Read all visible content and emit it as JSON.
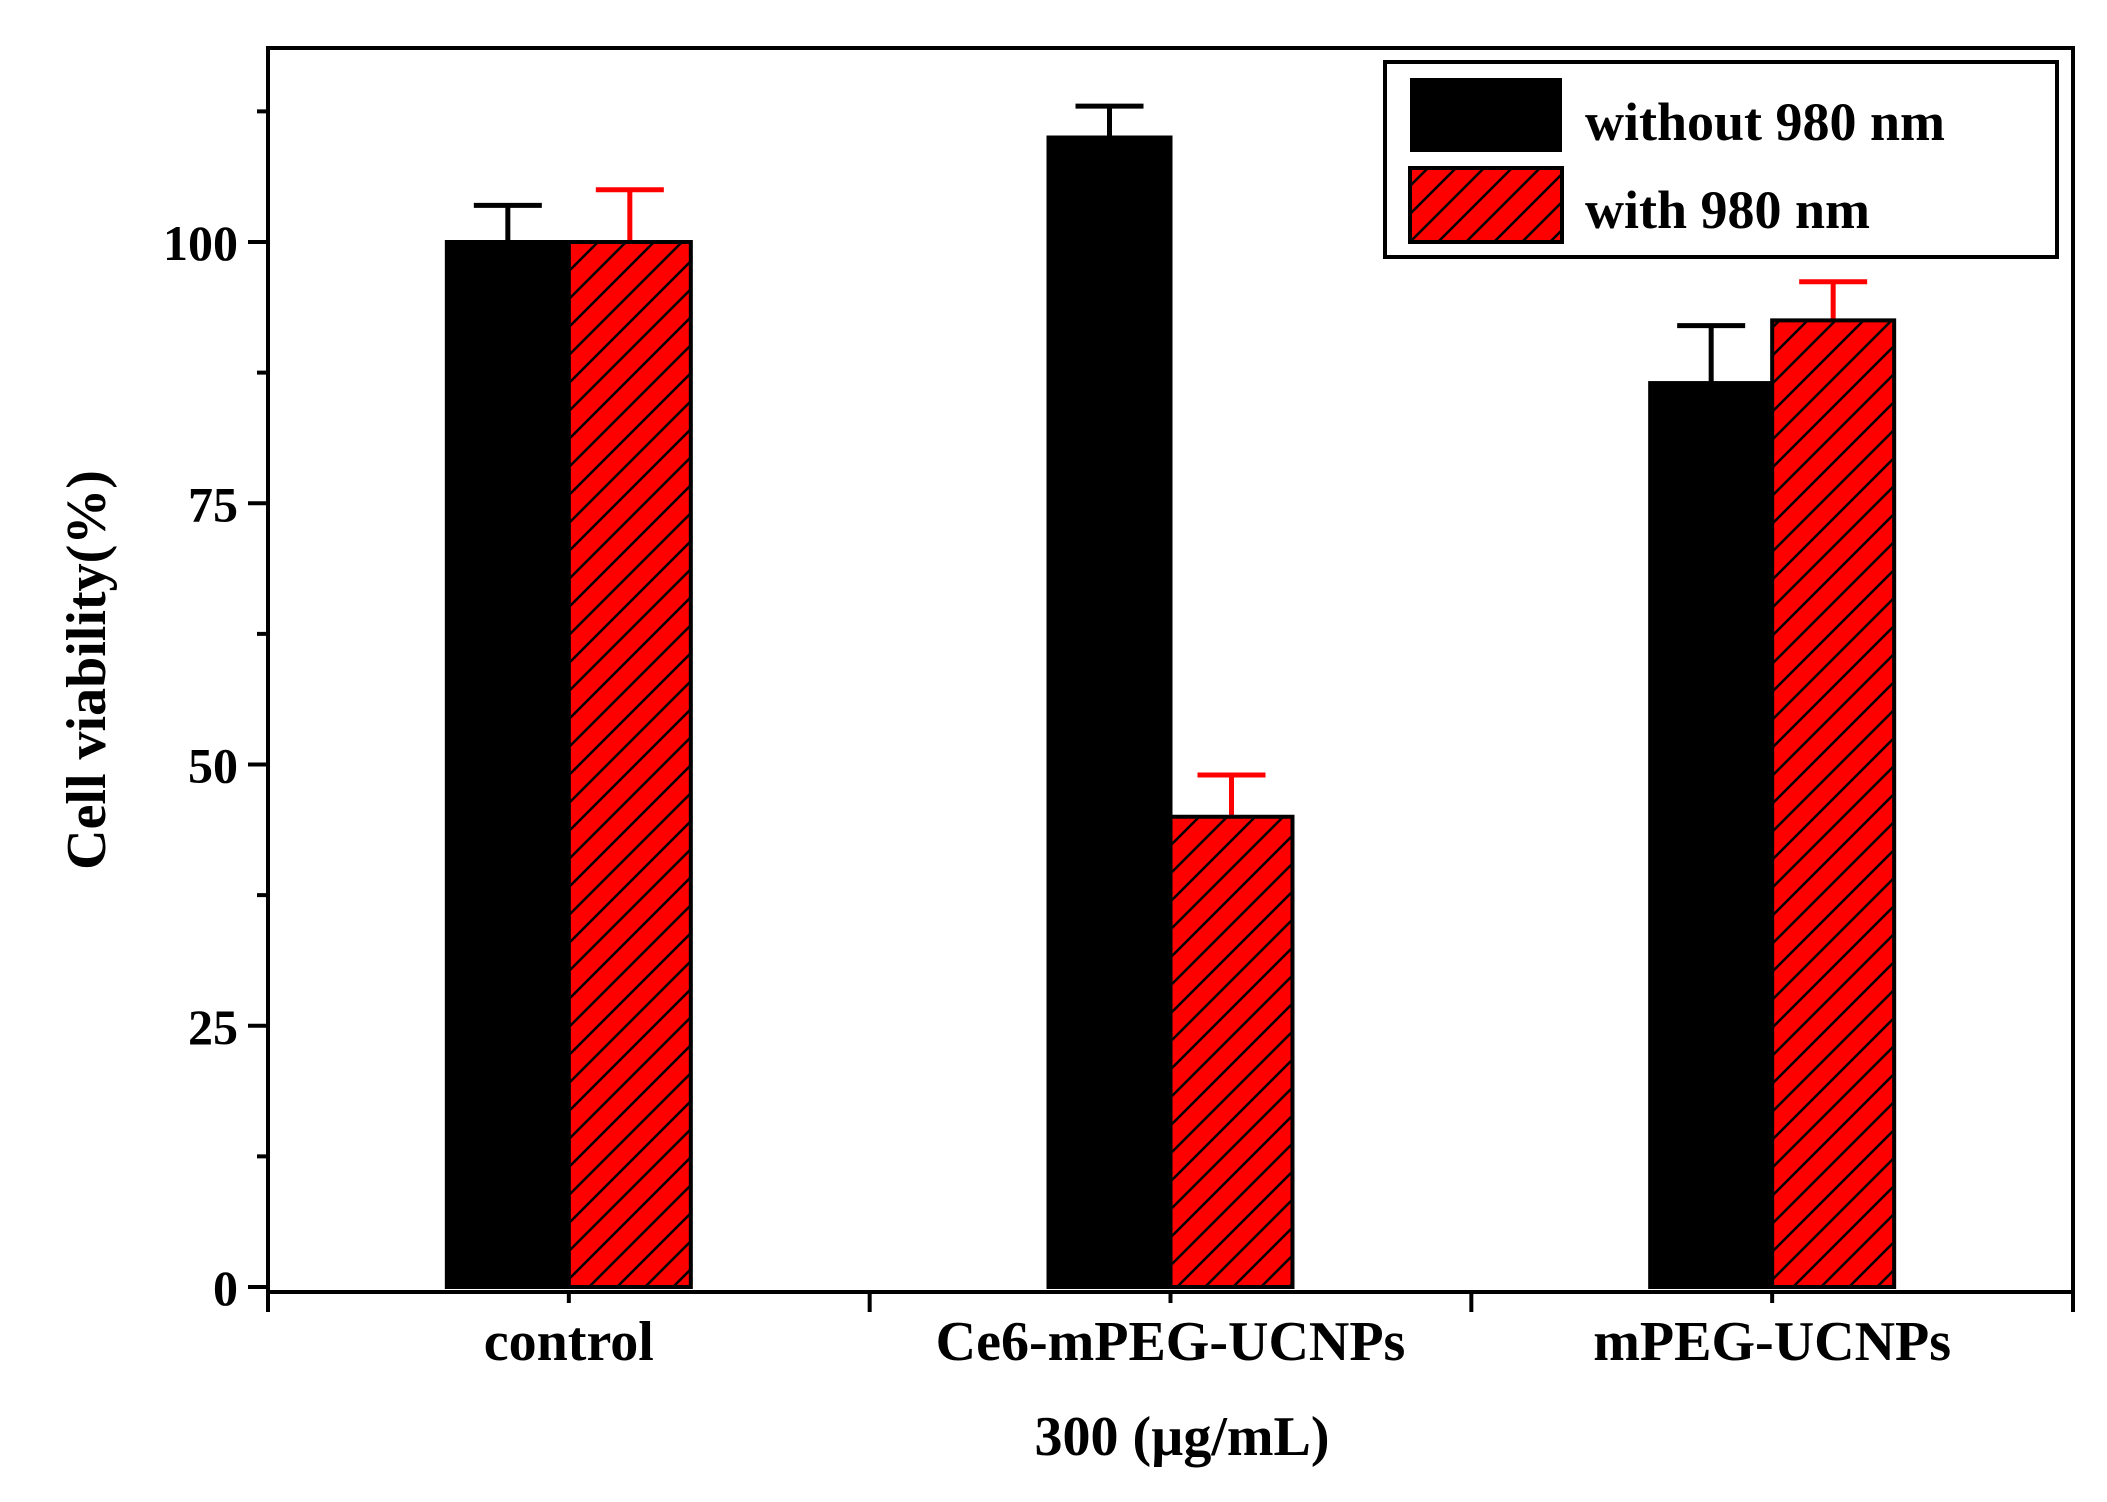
{
  "chart_data": {
    "type": "bar",
    "title": "",
    "categories": [
      "control",
      "Ce6-mPEG-UCNPs",
      "mPEG-UCNPs"
    ],
    "xlabel": "300 (µg/mL)",
    "ylabel": "Cell viability(%)",
    "ylim": [
      0,
      120
    ],
    "yticks": [
      0,
      25,
      50,
      75,
      100
    ],
    "legend_position": "top-right",
    "series": [
      {
        "name": "without 980 nm",
        "color": "#000000",
        "pattern": "solid",
        "values": [
          100,
          110,
          86.5
        ],
        "errors": [
          3.5,
          3,
          5.5
        ]
      },
      {
        "name": "with 980 nm",
        "color": "#ff0000",
        "pattern": "diagonal-hatch",
        "values": [
          100,
          45,
          92.5
        ],
        "errors": [
          5,
          4,
          3.7
        ]
      }
    ]
  }
}
